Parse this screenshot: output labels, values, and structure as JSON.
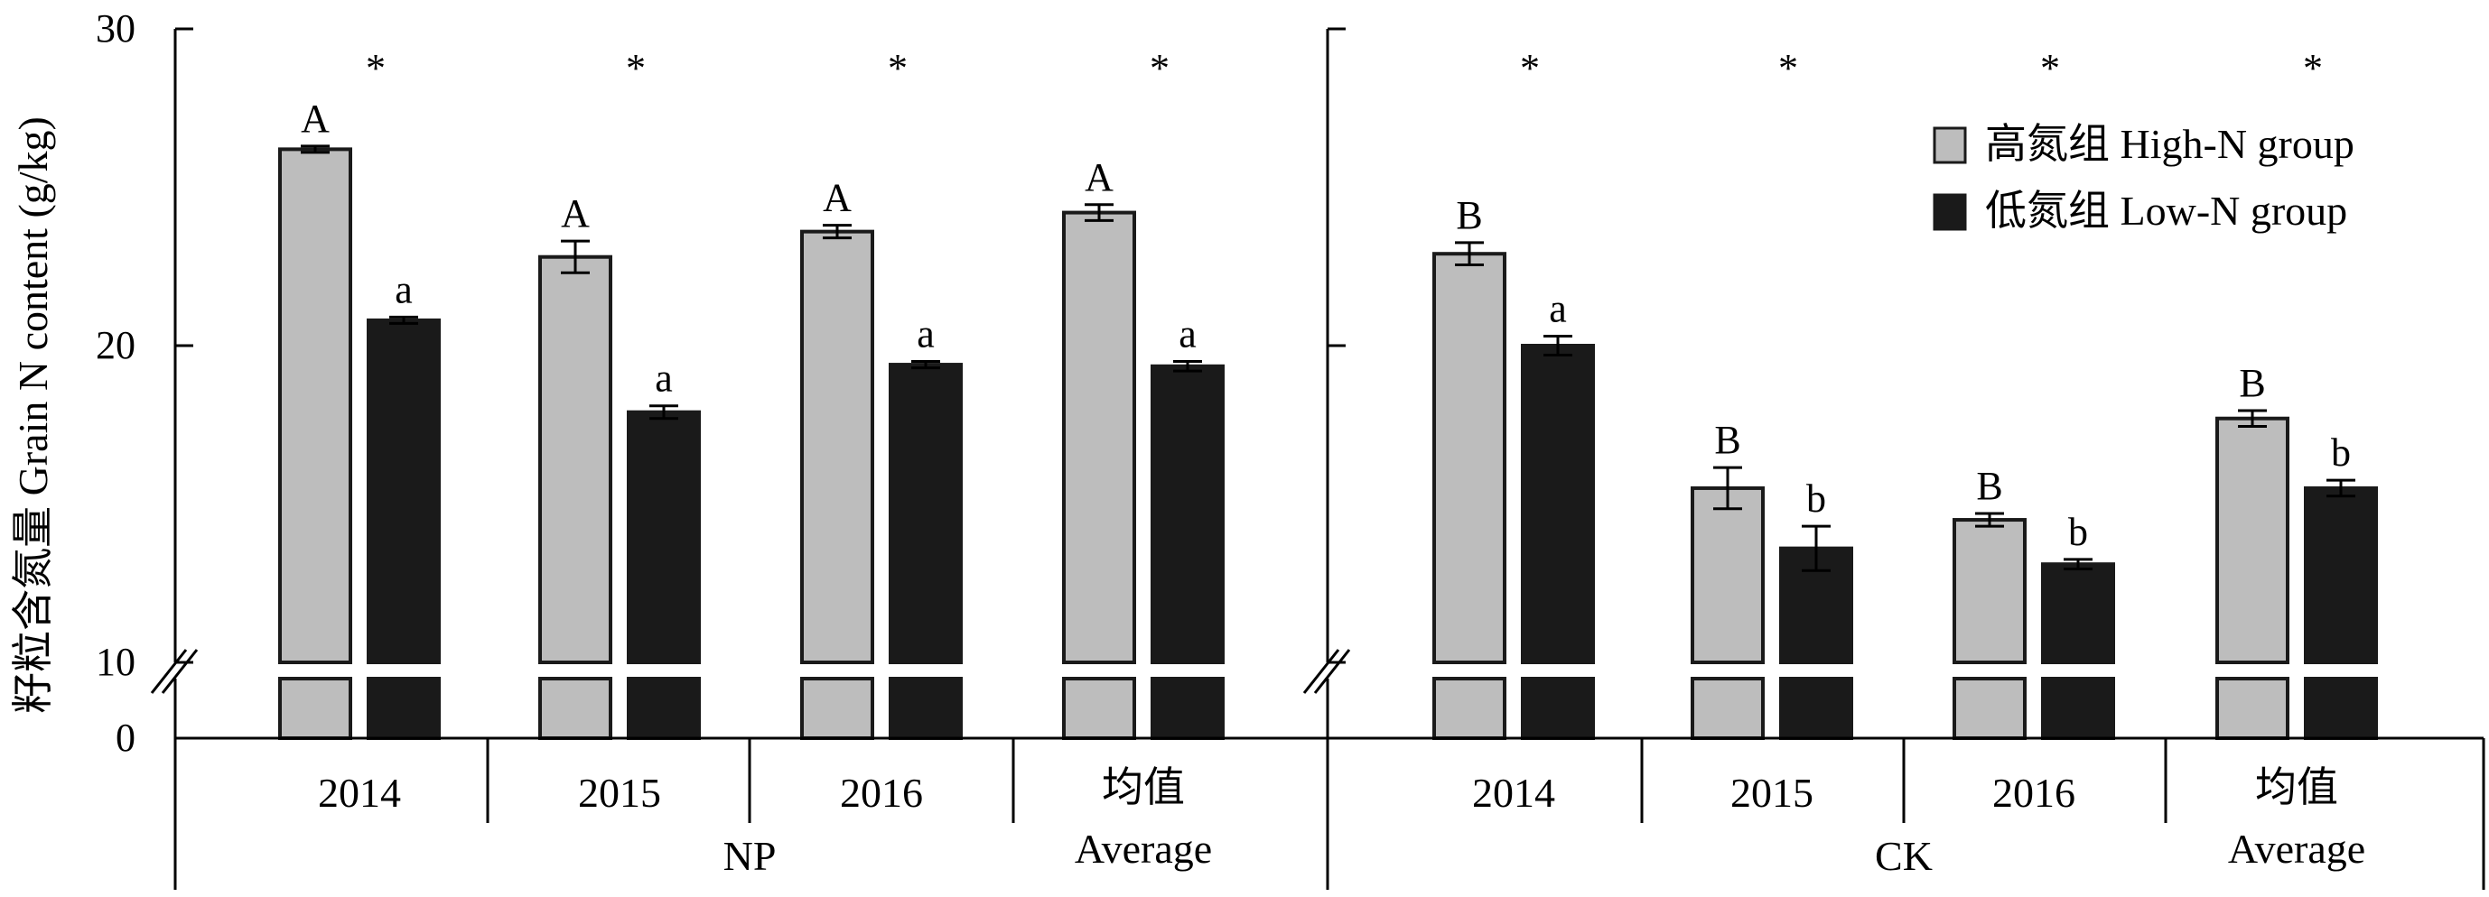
{
  "chart_data": {
    "type": "bar",
    "ylabel": "籽粒含氮量 Grain N content (g/kg)",
    "y_ticks": [
      "0",
      "10",
      "20",
      "30"
    ],
    "y_axis": {
      "broken": true,
      "lower_segment": [
        0,
        10
      ],
      "upper_segment": [
        10,
        30
      ]
    },
    "groups": [
      {
        "name": "NP",
        "categories": [
          {
            "label_line1": "2014",
            "label_line2": ""
          },
          {
            "label_line1": "2015",
            "label_line2": ""
          },
          {
            "label_line1": "2016",
            "label_line2": ""
          },
          {
            "label_line1": "均值",
            "label_line2": "Average"
          }
        ],
        "high": [
          26.2,
          22.8,
          23.6,
          24.2
        ],
        "high_err": [
          0.1,
          0.5,
          0.2,
          0.25
        ],
        "low": [
          20.8,
          17.9,
          19.4,
          19.35
        ],
        "low_err": [
          0.1,
          0.2,
          0.1,
          0.15
        ],
        "high_letters": [
          "A",
          "A",
          "A",
          "A"
        ],
        "low_letters": [
          "a",
          "a",
          "a",
          "a"
        ],
        "sig": [
          "*",
          "*",
          "*",
          "*"
        ]
      },
      {
        "name": "CK",
        "categories": [
          {
            "label_line1": "2014",
            "label_line2": ""
          },
          {
            "label_line1": "2015",
            "label_line2": ""
          },
          {
            "label_line1": "2016",
            "label_line2": ""
          },
          {
            "label_line1": "均值",
            "label_line2": "Average"
          }
        ],
        "high": [
          22.9,
          15.5,
          14.5,
          17.7
        ],
        "high_err": [
          0.35,
          0.65,
          0.2,
          0.25
        ],
        "low": [
          20.0,
          13.6,
          13.1,
          15.5
        ],
        "low_err": [
          0.3,
          0.7,
          0.15,
          0.25
        ],
        "high_letters": [
          "B",
          "B",
          "B",
          "B"
        ],
        "low_letters": [
          "a",
          "b",
          "b",
          "b"
        ],
        "sig": [
          "*",
          "*",
          "*",
          "*"
        ]
      }
    ],
    "legend": {
      "position": "top-right",
      "entries": [
        {
          "label": "高氮组 High-N group",
          "color": "#bdbdbd"
        },
        {
          "label": "低氮组 Low-N group",
          "color": "#1a1a1a"
        }
      ]
    },
    "colors": {
      "high": "#bdbdbd",
      "low": "#1a1a1a",
      "edge": "#1a1a1a"
    }
  }
}
